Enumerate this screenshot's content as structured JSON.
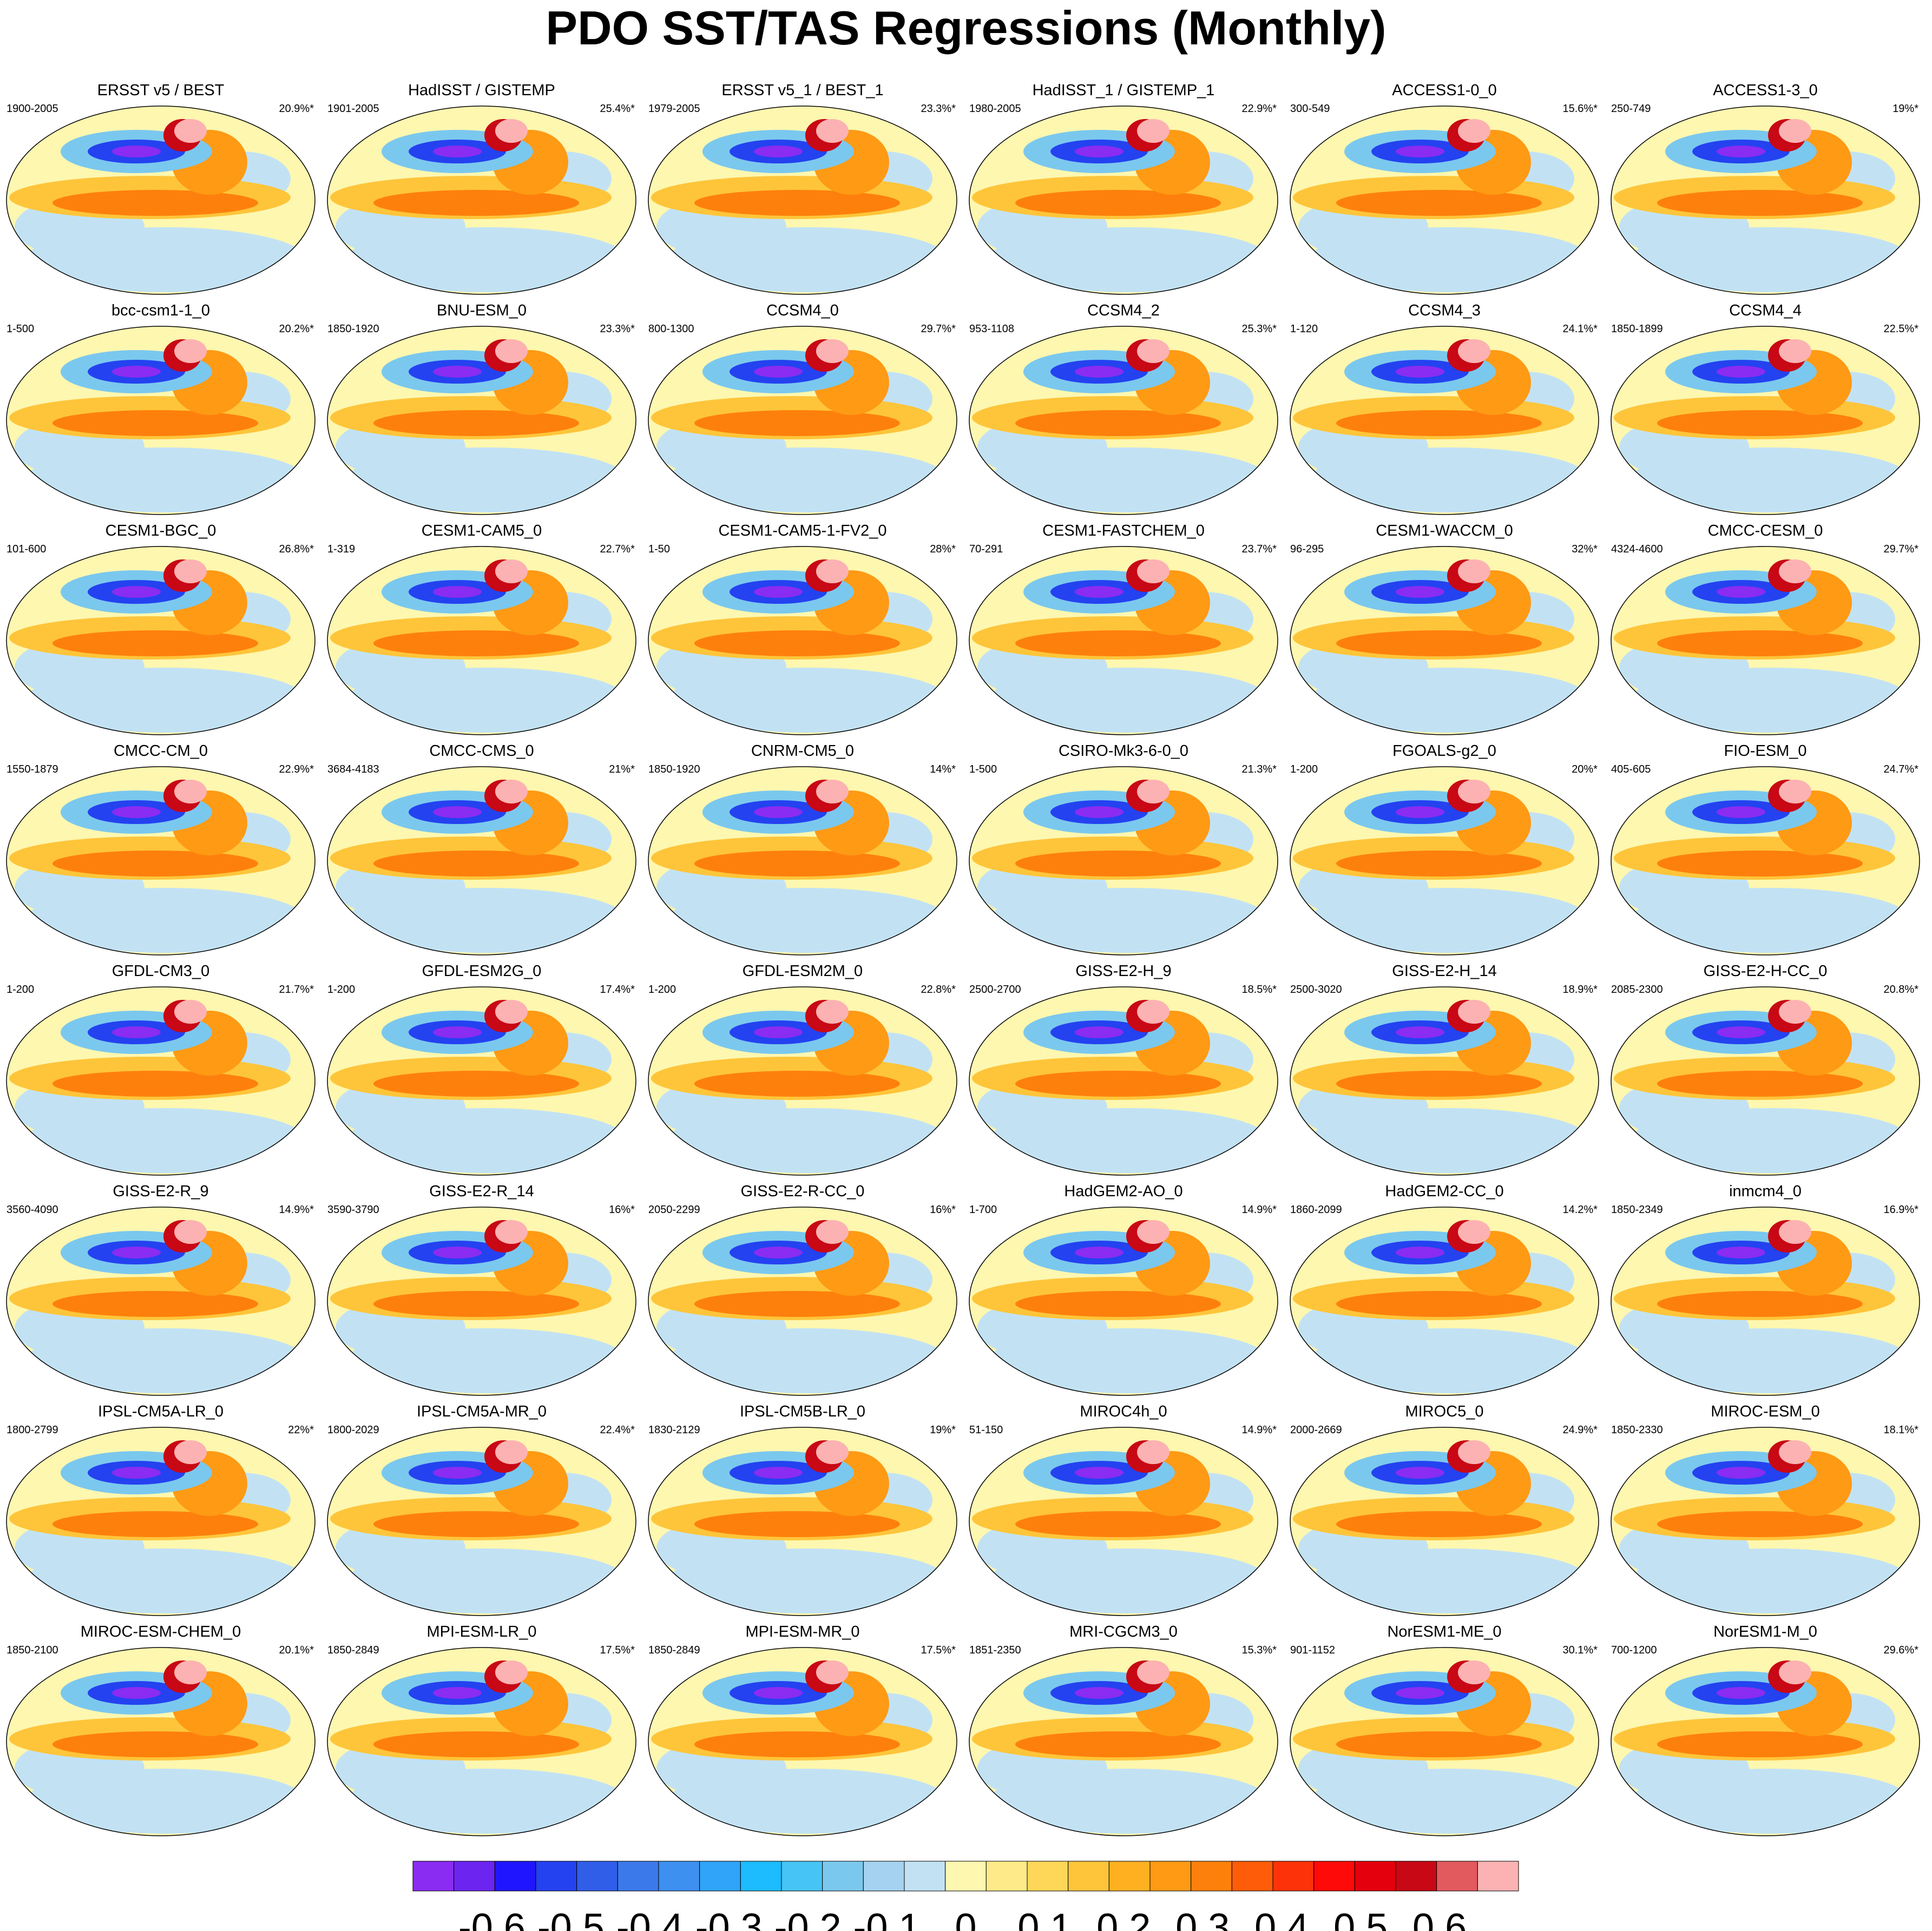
{
  "title": "PDO SST/TAS Regressions (Monthly)",
  "chart_data": {
    "type": "map-panels",
    "title": "PDO SST/TAS Regressions (Monthly)",
    "projection": "robinson-global",
    "panels": [
      {
        "name": "ERSST v5 / BEST",
        "years": "1900-2005",
        "variance": "20.9%*"
      },
      {
        "name": "HadISST / GISTEMP",
        "years": "1901-2005",
        "variance": "25.4%*"
      },
      {
        "name": "ERSST v5_1 / BEST_1",
        "years": "1979-2005",
        "variance": "23.3%*"
      },
      {
        "name": "HadISST_1 / GISTEMP_1",
        "years": "1980-2005",
        "variance": "22.9%*"
      },
      {
        "name": "ACCESS1-0_0",
        "years": "300-549",
        "variance": "15.6%*"
      },
      {
        "name": "ACCESS1-3_0",
        "years": "250-749",
        "variance": "19%*"
      },
      {
        "name": "bcc-csm1-1_0",
        "years": "1-500",
        "variance": "20.2%*"
      },
      {
        "name": "BNU-ESM_0",
        "years": "1850-1920",
        "variance": "23.3%*"
      },
      {
        "name": "CCSM4_0",
        "years": "800-1300",
        "variance": "29.7%*"
      },
      {
        "name": "CCSM4_2",
        "years": "953-1108",
        "variance": "25.3%*"
      },
      {
        "name": "CCSM4_3",
        "years": "1-120",
        "variance": "24.1%*"
      },
      {
        "name": "CCSM4_4",
        "years": "1850-1899",
        "variance": "22.5%*"
      },
      {
        "name": "CESM1-BGC_0",
        "years": "101-600",
        "variance": "26.8%*"
      },
      {
        "name": "CESM1-CAM5_0",
        "years": "1-319",
        "variance": "22.7%*"
      },
      {
        "name": "CESM1-CAM5-1-FV2_0",
        "years": "1-50",
        "variance": "28%*"
      },
      {
        "name": "CESM1-FASTCHEM_0",
        "years": "70-291",
        "variance": "23.7%*"
      },
      {
        "name": "CESM1-WACCM_0",
        "years": "96-295",
        "variance": "32%*"
      },
      {
        "name": "CMCC-CESM_0",
        "years": "4324-4600",
        "variance": "29.7%*"
      },
      {
        "name": "CMCC-CM_0",
        "years": "1550-1879",
        "variance": "22.9%*"
      },
      {
        "name": "CMCC-CMS_0",
        "years": "3684-4183",
        "variance": "21%*"
      },
      {
        "name": "CNRM-CM5_0",
        "years": "1850-1920",
        "variance": "14%*"
      },
      {
        "name": "CSIRO-Mk3-6-0_0",
        "years": "1-500",
        "variance": "21.3%*"
      },
      {
        "name": "FGOALS-g2_0",
        "years": "1-200",
        "variance": "20%*"
      },
      {
        "name": "FIO-ESM_0",
        "years": "405-605",
        "variance": "24.7%*"
      },
      {
        "name": "GFDL-CM3_0",
        "years": "1-200",
        "variance": "21.7%*"
      },
      {
        "name": "GFDL-ESM2G_0",
        "years": "1-200",
        "variance": "17.4%*"
      },
      {
        "name": "GFDL-ESM2M_0",
        "years": "1-200",
        "variance": "22.8%*"
      },
      {
        "name": "GISS-E2-H_9",
        "years": "2500-2700",
        "variance": "18.5%*"
      },
      {
        "name": "GISS-E2-H_14",
        "years": "2500-3020",
        "variance": "18.9%*"
      },
      {
        "name": "GISS-E2-H-CC_0",
        "years": "2085-2300",
        "variance": "20.8%*"
      },
      {
        "name": "GISS-E2-R_9",
        "years": "3560-4090",
        "variance": "14.9%*"
      },
      {
        "name": "GISS-E2-R_14",
        "years": "3590-3790",
        "variance": "16%*"
      },
      {
        "name": "GISS-E2-R-CC_0",
        "years": "2050-2299",
        "variance": "16%*"
      },
      {
        "name": "HadGEM2-AO_0",
        "years": "1-700",
        "variance": "14.9%*"
      },
      {
        "name": "HadGEM2-CC_0",
        "years": "1860-2099",
        "variance": "14.2%*"
      },
      {
        "name": "inmcm4_0",
        "years": "1850-2349",
        "variance": "16.9%*"
      },
      {
        "name": "IPSL-CM5A-LR_0",
        "years": "1800-2799",
        "variance": "22%*"
      },
      {
        "name": "IPSL-CM5A-MR_0",
        "years": "1800-2029",
        "variance": "22.4%*"
      },
      {
        "name": "IPSL-CM5B-LR_0",
        "years": "1830-2129",
        "variance": "19%*"
      },
      {
        "name": "MIROC4h_0",
        "years": "51-150",
        "variance": "14.9%*"
      },
      {
        "name": "MIROC5_0",
        "years": "2000-2669",
        "variance": "24.9%*"
      },
      {
        "name": "MIROC-ESM_0",
        "years": "1850-2330",
        "variance": "18.1%*"
      },
      {
        "name": "MIROC-ESM-CHEM_0",
        "years": "1850-2100",
        "variance": "20.1%*"
      },
      {
        "name": "MPI-ESM-LR_0",
        "years": "1850-2849",
        "variance": "17.5%*"
      },
      {
        "name": "MPI-ESM-MR_0",
        "years": "1850-2849",
        "variance": "17.5%*"
      },
      {
        "name": "MRI-CGCM3_0",
        "years": "1851-2350",
        "variance": "15.3%*"
      },
      {
        "name": "NorESM1-ME_0",
        "years": "901-1152",
        "variance": "30.1%*"
      },
      {
        "name": "NorESM1-M_0",
        "years": "700-1200",
        "variance": "29.6%*"
      }
    ],
    "colorbar": {
      "range": [
        -0.7,
        0.7
      ],
      "colors": [
        "#8a2cf2",
        "#6c24f0",
        "#1f16ff",
        "#2442f0",
        "#305ee8",
        "#3b78ea",
        "#3d8ff0",
        "#2fa4f8",
        "#1cbcff",
        "#46c4f6",
        "#7bc8ee",
        "#a4d2f0",
        "#c2e2f4",
        "#fdf7b0",
        "#feea88",
        "#fed758",
        "#fec53a",
        "#feb021",
        "#fe9a14",
        "#fe800c",
        "#fe5c08",
        "#fe3208",
        "#fe0a08",
        "#e4000c",
        "#c80814",
        "#e25a5e",
        "#fcb2b2"
      ],
      "tick_labels": [
        "-0.6",
        "-0.5",
        "-0.4",
        "-0.3",
        "-0.2",
        "-0.1",
        "0",
        "0.1",
        "0.2",
        "0.3",
        "0.4",
        "0.5",
        "0.6"
      ]
    }
  }
}
